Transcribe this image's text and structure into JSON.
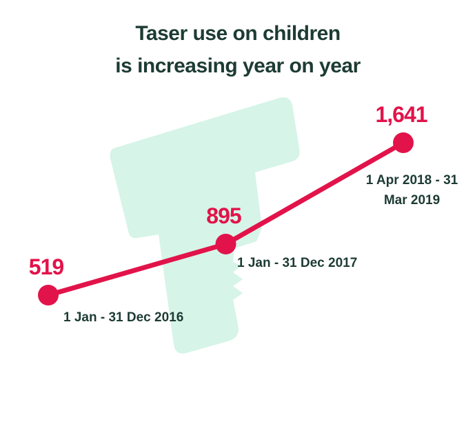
{
  "chart_data": {
    "type": "line",
    "title": [
      "Taser use on children",
      "is increasing year on year"
    ],
    "categories": [
      "1 Jan - 31 Dec 2016",
      "1 Jan - 31 Dec 2017",
      "1 Apr 2018 - 31 Mar 2019"
    ],
    "values": [
      519,
      895,
      1641
    ],
    "value_labels": [
      "519",
      "895",
      "1,641"
    ],
    "color": "#e2134a"
  }
}
